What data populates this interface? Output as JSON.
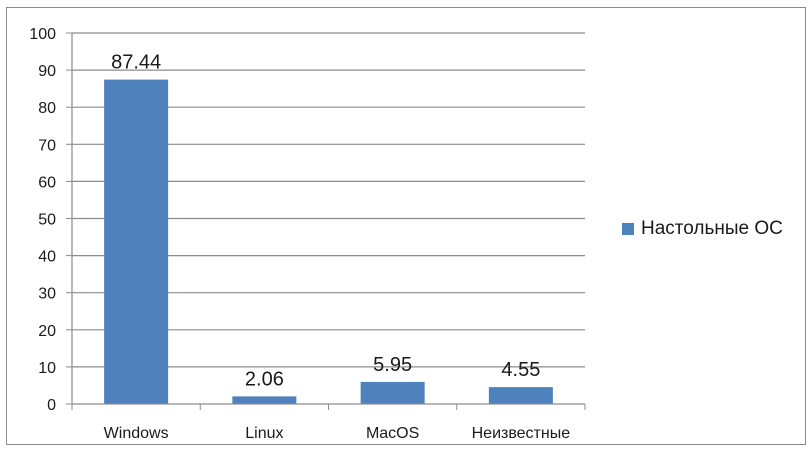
{
  "chart_data": {
    "type": "bar",
    "categories": [
      "Windows",
      "Linux",
      "MacOS",
      "Неизвестные"
    ],
    "series": [
      {
        "name": "Настольные ОС",
        "values": [
          87.44,
          2.06,
          5.95,
          4.55
        ],
        "color": "#4f81bd"
      }
    ],
    "data_labels": [
      "87.44",
      "2.06",
      "5.95",
      "4.55"
    ],
    "ylim": [
      0,
      100
    ],
    "yticks": [
      0,
      10,
      20,
      30,
      40,
      50,
      60,
      70,
      80,
      90,
      100
    ],
    "grid": true,
    "legend_position": "right",
    "title": "",
    "xlabel": "",
    "ylabel": ""
  }
}
